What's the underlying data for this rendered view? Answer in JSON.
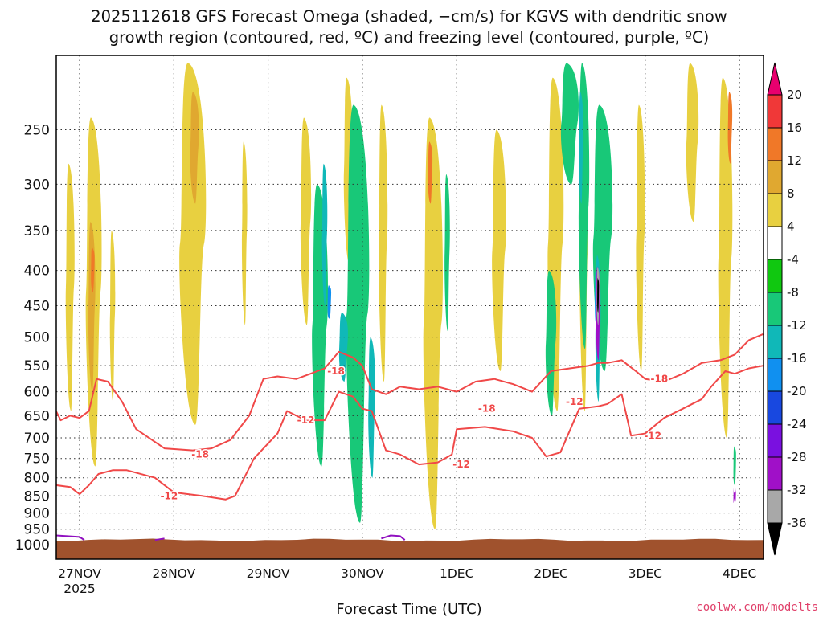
{
  "chart_data": {
    "type": "heatmap",
    "title_line1": "2025112618 GFS Forecast Omega (shaded, −cm/s) for KGVS with dendritic snow",
    "title_line2": "growth region (contoured, red, ºC) and freezing level (contoured, purple, ºC)",
    "xlabel": "Forecast Time (UTC)",
    "ylabel": "",
    "y_ticks": [
      "250",
      "300",
      "350",
      "400",
      "450",
      "500",
      "550",
      "600",
      "650",
      "700",
      "750",
      "800",
      "850",
      "900",
      "950",
      "1000"
    ],
    "x_ticks": [
      "27NOV",
      "28NOV",
      "29NOV",
      "30NOV",
      "1DEC",
      "2DEC",
      "3DEC",
      "4DEC"
    ],
    "x_year": "2025",
    "ylim": [
      1000,
      200
    ],
    "xlim": [
      -0.25,
      7.25
    ],
    "colorbar": {
      "labels": [
        "20",
        "16",
        "12",
        "8",
        "4",
        "-4",
        "-8",
        "-12",
        "-16",
        "-20",
        "-24",
        "-28",
        "-32",
        "-36"
      ],
      "colors": [
        "#e8006e",
        "#f03838",
        "#f07828",
        "#e0a830",
        "#e8d040",
        "#ffffff",
        "#10c810",
        "#18c878",
        "#10b8b8",
        "#1090f0",
        "#1848e0",
        "#7a10e0",
        "#a010c8",
        "#a8a8a8",
        "#000000"
      ]
    },
    "contour_labels": [
      "-18",
      "-12",
      "-18",
      "-12",
      "-18",
      "-12",
      "-12",
      "-18",
      "-12"
    ],
    "surface_color": "#a0522d",
    "dsgz_color": "#f04848",
    "freezing_color": "#9010c0",
    "omega_regions": [
      {
        "day": 0.15,
        "p_top": 240,
        "p_bot": 770,
        "width": 0.18,
        "v": 4
      },
      {
        "day": 0.13,
        "p_top": 340,
        "p_bot": 600,
        "width": 0.08,
        "v": 8
      },
      {
        "day": 0.14,
        "p_top": 370,
        "p_bot": 430,
        "width": 0.04,
        "v": 14
      },
      {
        "day": -0.1,
        "p_top": 280,
        "p_bot": 640,
        "width": 0.1,
        "v": 4
      },
      {
        "day": 0.35,
        "p_top": 350,
        "p_bot": 620,
        "width": 0.06,
        "v": 4
      },
      {
        "day": 1.2,
        "p_top": 200,
        "p_bot": 670,
        "width": 0.3,
        "v": 4
      },
      {
        "day": 1.22,
        "p_top": 220,
        "p_bot": 320,
        "width": 0.1,
        "v": 8
      },
      {
        "day": 1.75,
        "p_top": 260,
        "p_bot": 480,
        "width": 0.06,
        "v": 4
      },
      {
        "day": 2.4,
        "p_top": 240,
        "p_bot": 480,
        "width": 0.12,
        "v": 4
      },
      {
        "day": 2.85,
        "p_top": 210,
        "p_bot": 390,
        "width": 0.1,
        "v": 4
      },
      {
        "day": 3.22,
        "p_top": 230,
        "p_bot": 580,
        "width": 0.1,
        "v": 4
      },
      {
        "day": 3.75,
        "p_top": 240,
        "p_bot": 950,
        "width": 0.22,
        "v": 4
      },
      {
        "day": 3.72,
        "p_top": 260,
        "p_bot": 320,
        "width": 0.05,
        "v": 12
      },
      {
        "day": 4.45,
        "p_top": 250,
        "p_bot": 560,
        "width": 0.16,
        "v": 4
      },
      {
        "day": 5.05,
        "p_top": 210,
        "p_bot": 640,
        "width": 0.18,
        "v": 4
      },
      {
        "day": 5.35,
        "p_top": 220,
        "p_bot": 640,
        "width": 0.1,
        "v": 4
      },
      {
        "day": 5.95,
        "p_top": 230,
        "p_bot": 560,
        "width": 0.1,
        "v": 4
      },
      {
        "day": 6.5,
        "p_top": 200,
        "p_bot": 340,
        "width": 0.14,
        "v": 4
      },
      {
        "day": 6.85,
        "p_top": 210,
        "p_bot": 700,
        "width": 0.16,
        "v": 4
      },
      {
        "day": 6.9,
        "p_top": 220,
        "p_bot": 280,
        "width": 0.05,
        "v": 12
      },
      {
        "day": 2.55,
        "p_top": 300,
        "p_bot": 770,
        "width": 0.18,
        "v": -8
      },
      {
        "day": 2.95,
        "p_top": 230,
        "p_bot": 930,
        "width": 0.26,
        "v": -8
      },
      {
        "day": 2.8,
        "p_top": 460,
        "p_bot": 580,
        "width": 0.1,
        "v": -12
      },
      {
        "day": 3.1,
        "p_top": 500,
        "p_bot": 800,
        "width": 0.08,
        "v": -12
      },
      {
        "day": 2.6,
        "p_top": 280,
        "p_bot": 450,
        "width": 0.06,
        "v": -12
      },
      {
        "day": 2.65,
        "p_top": 420,
        "p_bot": 470,
        "width": 0.04,
        "v": -16
      },
      {
        "day": 3.9,
        "p_top": 290,
        "p_bot": 490,
        "width": 0.06,
        "v": -8
      },
      {
        "day": 5.2,
        "p_top": 200,
        "p_bot": 300,
        "width": 0.2,
        "v": -8
      },
      {
        "day": 5.0,
        "p_top": 400,
        "p_bot": 650,
        "width": 0.12,
        "v": -8
      },
      {
        "day": 5.55,
        "p_top": 230,
        "p_bot": 560,
        "width": 0.22,
        "v": -8
      },
      {
        "day": 5.35,
        "p_top": 200,
        "p_bot": 520,
        "width": 0.12,
        "v": -8
      },
      {
        "day": 5.32,
        "p_top": 220,
        "p_bot": 320,
        "width": 0.05,
        "v": -12
      },
      {
        "day": 5.5,
        "p_top": 380,
        "p_bot": 620,
        "width": 0.06,
        "v": -12
      },
      {
        "day": 5.48,
        "p_top": 400,
        "p_bot": 480,
        "width": 0.03,
        "v": -16
      },
      {
        "day": 5.5,
        "p_top": 395,
        "p_bot": 540,
        "width": 0.05,
        "v": -28
      },
      {
        "day": 5.5,
        "p_top": 395,
        "p_bot": 480,
        "width": 0.03,
        "v": -32
      },
      {
        "day": 5.5,
        "p_top": 410,
        "p_bot": 460,
        "width": 0.02,
        "v": -36
      },
      {
        "day": 6.95,
        "p_top": 720,
        "p_bot": 820,
        "width": 0.03,
        "v": -8
      },
      {
        "day": 6.95,
        "p_top": 840,
        "p_bot": 855,
        "width": 0.03,
        "v": -28
      }
    ],
    "dsgz_lines": [
      {
        "name": "dsgz-top",
        "days": [
          -0.25,
          -0.2,
          -0.1,
          0.0,
          0.1,
          0.18,
          0.3,
          0.45,
          0.6,
          0.9,
          1.2,
          1.4,
          1.6,
          1.8,
          1.95,
          2.1,
          2.3,
          2.45,
          2.6,
          2.75,
          2.9,
          3.0,
          3.1,
          3.25,
          3.4,
          3.6,
          3.8,
          4.0,
          4.2,
          4.4,
          4.6,
          4.8,
          5.0,
          5.2,
          5.4,
          5.5,
          5.6,
          5.75,
          5.9,
          6.0,
          6.2,
          6.4,
          6.6,
          6.8,
          6.95,
          7.1,
          7.25
        ],
        "p": [
          640,
          660,
          650,
          655,
          640,
          575,
          580,
          620,
          680,
          725,
          730,
          725,
          705,
          650,
          575,
          570,
          575,
          565,
          555,
          525,
          535,
          550,
          595,
          605,
          590,
          595,
          590,
          600,
          580,
          575,
          585,
          600,
          560,
          555,
          550,
          545,
          545,
          540,
          560,
          575,
          580,
          565,
          545,
          540,
          530,
          505,
          495
        ]
      },
      {
        "name": "dsgz-bottom",
        "days": [
          -0.25,
          -0.1,
          0.0,
          0.1,
          0.2,
          0.35,
          0.5,
          0.8,
          1.0,
          1.3,
          1.55,
          1.65,
          1.85,
          2.1,
          2.2,
          2.4,
          2.6,
          2.75,
          2.9,
          3.0,
          3.1,
          3.25,
          3.4,
          3.6,
          3.8,
          3.95,
          4.0,
          4.3,
          4.6,
          4.8,
          4.95,
          5.1,
          5.3,
          5.5,
          5.6,
          5.75,
          5.85,
          6.0,
          6.2,
          6.4,
          6.6,
          6.7,
          6.85,
          6.95,
          7.1,
          7.25
        ],
        "p": [
          820,
          825,
          845,
          820,
          790,
          780,
          780,
          800,
          840,
          850,
          860,
          850,
          750,
          690,
          640,
          660,
          660,
          600,
          610,
          635,
          640,
          730,
          740,
          765,
          760,
          740,
          680,
          675,
          685,
          700,
          745,
          735,
          635,
          630,
          625,
          605,
          695,
          690,
          655,
          635,
          615,
          590,
          560,
          565,
          555,
          550
        ]
      }
    ],
    "freezing_lines": [
      {
        "name": "freezing-segment-1",
        "days": [
          -0.25,
          0.0,
          0.05
        ],
        "p": [
          970,
          975,
          985
        ]
      },
      {
        "name": "freezing-segment-2",
        "days": [
          0.8,
          0.9
        ],
        "p": [
          985,
          980
        ]
      },
      {
        "name": "freezing-segment-3",
        "days": [
          3.2,
          3.3,
          3.4,
          3.45
        ],
        "p": [
          980,
          970,
          972,
          985
        ]
      }
    ],
    "surface_pressure": 985,
    "contour_label_positions": [
      {
        "day": 1.28,
        "p": 740
      },
      {
        "day": 0.95,
        "p": 850
      },
      {
        "day": 2.72,
        "p": 560
      },
      {
        "day": 2.4,
        "p": 660
      },
      {
        "day": 4.32,
        "p": 635
      },
      {
        "day": 4.05,
        "p": 765
      },
      {
        "day": 5.25,
        "p": 620
      },
      {
        "day": 6.15,
        "p": 575
      },
      {
        "day": 6.08,
        "p": 695
      }
    ]
  },
  "watermark": "coolwx.com/modelts"
}
